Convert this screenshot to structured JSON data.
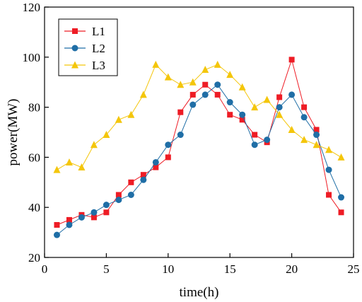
{
  "chart_data": {
    "type": "line",
    "title": "",
    "xlabel": "time(h)",
    "ylabel": "power(MW)",
    "xlim": [
      0,
      25
    ],
    "ylim": [
      20,
      120
    ],
    "xticks": [
      0,
      5,
      10,
      15,
      20,
      25
    ],
    "yticks": [
      20,
      40,
      60,
      80,
      100,
      120
    ],
    "xtick_labels": [
      "0",
      "5",
      "10",
      "15",
      "20",
      "25"
    ],
    "ytick_labels": [
      "20",
      "40",
      "60",
      "80",
      "100",
      "120"
    ],
    "grid": false,
    "legend_position": "top-left",
    "x": [
      1,
      2,
      3,
      4,
      5,
      6,
      7,
      8,
      9,
      10,
      11,
      12,
      13,
      14,
      15,
      16,
      17,
      18,
      19,
      20,
      21,
      22,
      23,
      24
    ],
    "series": [
      {
        "name": "L1",
        "color": "#ee1c25",
        "marker": "square",
        "values": [
          33,
          35,
          37,
          36,
          38,
          45,
          50,
          53,
          56,
          60,
          78,
          85,
          89,
          85,
          77,
          75,
          69,
          66,
          84,
          99,
          80,
          71,
          45,
          38
        ]
      },
      {
        "name": "L2",
        "color": "#1f6ea6",
        "marker": "circle",
        "values": [
          29,
          33,
          36,
          38,
          41,
          43,
          45,
          51,
          58,
          65,
          69,
          81,
          85,
          89,
          82,
          77,
          65,
          67,
          80,
          85,
          76,
          69,
          55,
          44
        ]
      },
      {
        "name": "L3",
        "color": "#f4c60b",
        "marker": "triangle",
        "values": [
          55,
          58,
          56,
          65,
          69,
          75,
          77,
          85,
          97,
          92,
          89,
          90,
          95,
          97,
          93,
          88,
          80,
          83,
          77,
          71,
          67,
          65,
          63,
          60
        ]
      }
    ]
  }
}
